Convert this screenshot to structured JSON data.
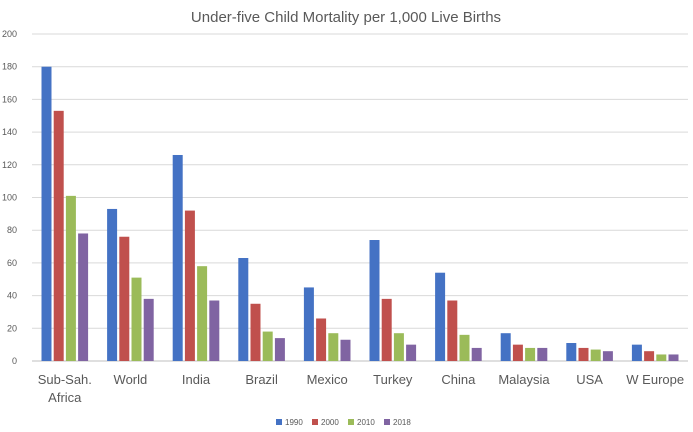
{
  "chart_data": {
    "type": "bar",
    "title": "Under-five Child Mortality per 1,000 Live Births",
    "categories": [
      "Sub-Sah. Africa",
      "World",
      "India",
      "Brazil",
      "Mexico",
      "Turkey",
      "China",
      "Malaysia",
      "USA",
      "W Europe"
    ],
    "category_lines": [
      [
        "Sub-Sah.",
        "Africa"
      ],
      [
        "World"
      ],
      [
        "India"
      ],
      [
        "Brazil"
      ],
      [
        "Mexico"
      ],
      [
        "Turkey"
      ],
      [
        "China"
      ],
      [
        "Malaysia"
      ],
      [
        "USA"
      ],
      [
        "W Europe"
      ]
    ],
    "series": [
      {
        "name": "1990",
        "color": "#4472c4",
        "values": [
          180,
          93,
          126,
          63,
          45,
          74,
          54,
          17,
          11,
          10
        ]
      },
      {
        "name": "2000",
        "color": "#c0504d",
        "values": [
          153,
          76,
          92,
          35,
          26,
          38,
          37,
          10,
          8,
          6
        ]
      },
      {
        "name": "2010",
        "color": "#9bbb59",
        "values": [
          101,
          51,
          58,
          18,
          17,
          17,
          16,
          8,
          7,
          4
        ]
      },
      {
        "name": "2018",
        "color": "#8064a2",
        "values": [
          78,
          38,
          37,
          14,
          13,
          10,
          8,
          8,
          6,
          4
        ]
      }
    ],
    "y_ticks": [
      "0",
      "20",
      "40",
      "60",
      "80",
      "100",
      "120",
      "140",
      "160",
      "180",
      "200"
    ],
    "ylim": [
      0,
      200
    ],
    "grid": true,
    "legend_position": "bottom"
  }
}
